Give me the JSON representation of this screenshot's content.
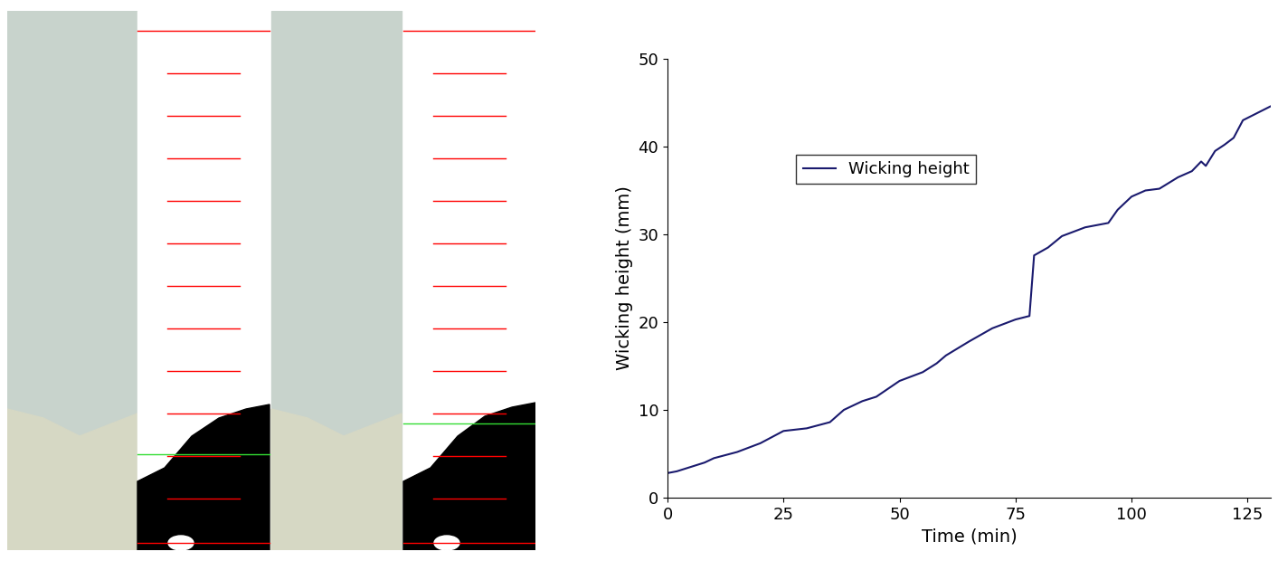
{
  "chart_data": {
    "type": "line",
    "x_label": "Time (min)",
    "y_label": "Wicking height (mm)",
    "x": [
      0,
      2,
      5,
      8,
      10,
      15,
      20,
      25,
      30,
      35,
      38,
      40,
      42,
      45,
      50,
      55,
      58,
      60,
      65,
      70,
      75,
      78,
      79,
      82,
      85,
      90,
      95,
      97,
      100,
      103,
      106,
      110,
      113,
      115,
      116,
      118,
      120,
      122,
      124,
      127,
      130
    ],
    "series": [
      {
        "name": "Wicking height",
        "color": "#1a1a6e",
        "line_style": "solid",
        "values": [
          2.8,
          3.0,
          3.5,
          4.0,
          4.5,
          5.2,
          6.2,
          7.6,
          7.9,
          8.6,
          10.0,
          10.5,
          11.0,
          11.5,
          13.3,
          14.3,
          15.3,
          16.2,
          17.8,
          19.3,
          20.3,
          20.7,
          27.6,
          28.5,
          29.8,
          30.8,
          31.3,
          32.8,
          34.3,
          35.0,
          35.2,
          36.5,
          37.2,
          38.3,
          37.8,
          39.5,
          40.2,
          41.0,
          43.0,
          43.8,
          44.6
        ]
      }
    ],
    "xlim": [
      0,
      130
    ],
    "ylim": [
      0,
      50
    ],
    "xticks": [
      0,
      25,
      50,
      75,
      100,
      125
    ],
    "yticks": [
      0,
      10,
      20,
      30,
      40,
      50
    ],
    "legend": "upper left",
    "grid": false
  }
}
